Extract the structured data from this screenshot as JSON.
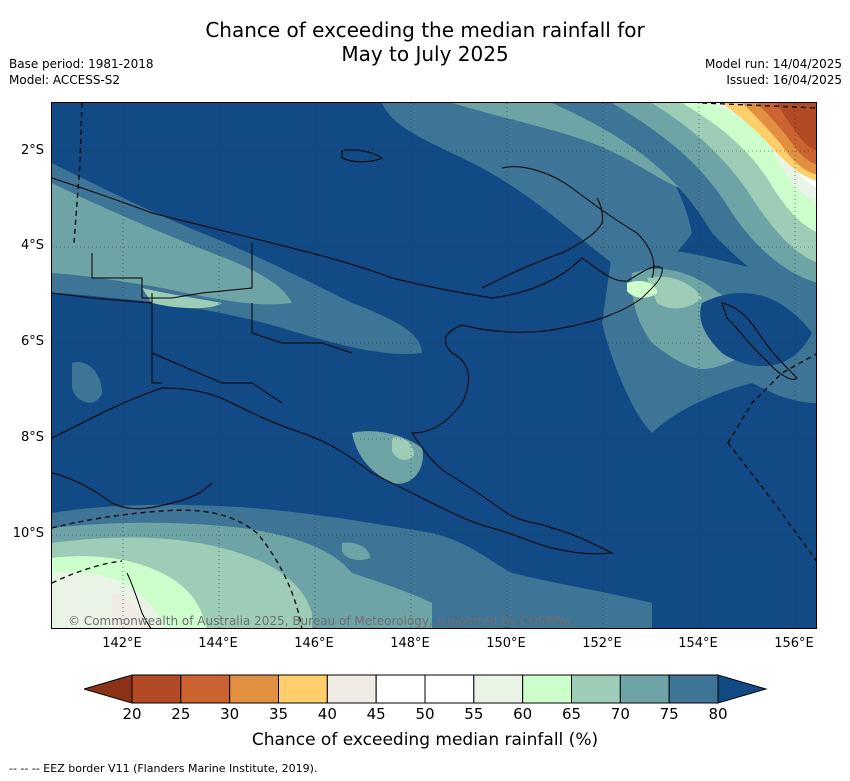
{
  "title": {
    "line1": "Chance of exceeding the median rainfall for",
    "line2": "May to July 2025"
  },
  "meta_left": {
    "base_period": "Base period: 1981-2018",
    "model": "Model: ACCESS-S2"
  },
  "meta_right": {
    "model_run": "Model run: 14/04/2025",
    "issued": "Issued: 16/04/2025"
  },
  "map": {
    "y_ticks": [
      "2°S",
      "4°S",
      "6°S",
      "8°S",
      "10°S"
    ],
    "x_ticks": [
      "142°E",
      "144°E",
      "146°E",
      "148°E",
      "150°E",
      "152°E",
      "154°E",
      "156°E"
    ],
    "copyright": "© Commonwealth of Australia 2025, Bureau of Meteorology, supported by COSPPac"
  },
  "colorbar": {
    "labels": [
      "20",
      "25",
      "30",
      "35",
      "40",
      "45",
      "50",
      "55",
      "60",
      "65",
      "70",
      "75",
      "80"
    ],
    "colors": [
      "#b24a25",
      "#cc6330",
      "#e09040",
      "#fecf6a",
      "#f0ebe4",
      "#ffffff",
      "#ffffff",
      "#eaf4e6",
      "#ccffcc",
      "#9dcdb6",
      "#6fa4a6",
      "#3e7496"
    ],
    "low_color": "#8c3317",
    "high_color": "#124a85",
    "title": "Chance of exceeding median rainfall (%)"
  },
  "legend": {
    "eez": "-- --  -- EEZ border V11 (Flanders Marine Institute, 2019)."
  }
}
